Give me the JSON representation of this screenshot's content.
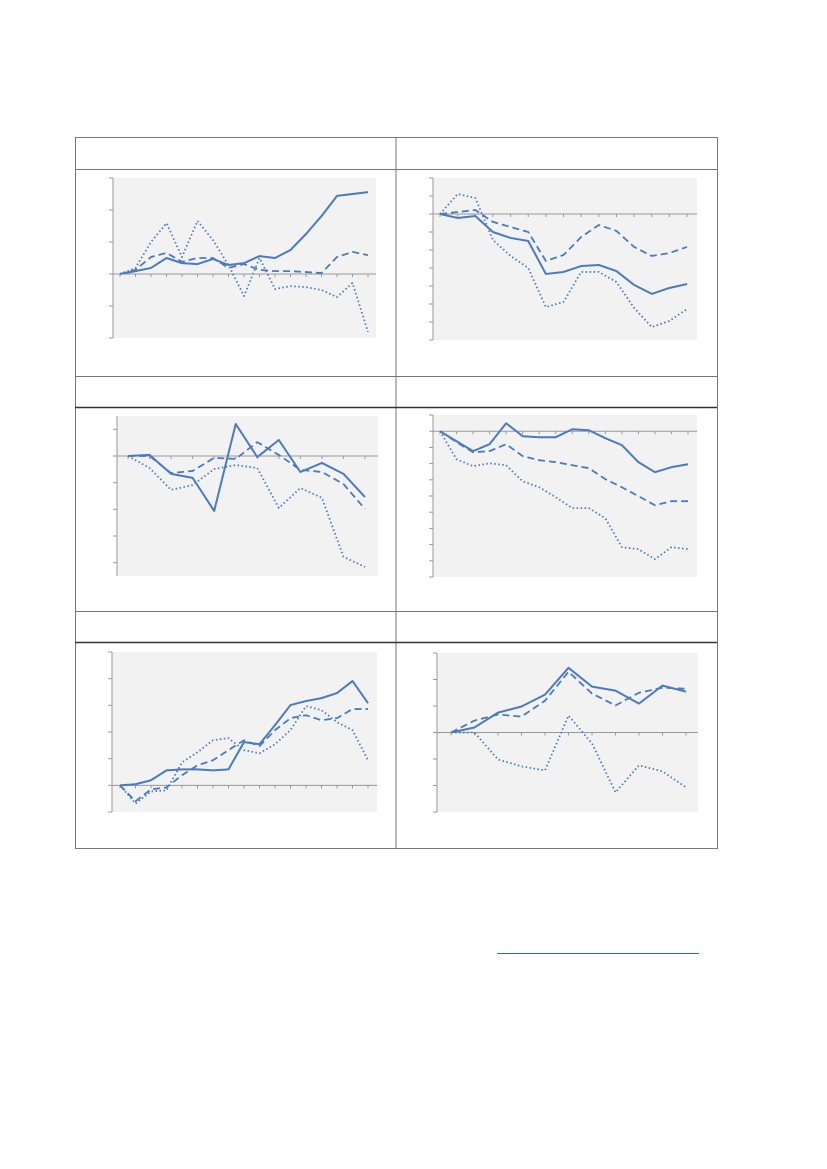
{
  "chart_data": [
    {
      "type": "line",
      "categories": [
        null,
        null,
        null,
        null,
        null,
        null,
        null,
        null,
        null,
        null,
        null,
        null,
        null,
        null,
        null,
        null,
        null
      ],
      "ylim": [
        -2,
        3
      ],
      "yticks": [
        -2,
        -1,
        0,
        1,
        2,
        3
      ],
      "series": [
        {
          "color": "#4a7bc0",
          "style": "solid",
          "values": [
            0,
            0.09,
            0.19,
            0.5,
            0.34,
            0.31,
            0.47,
            0.28,
            0.34,
            0.56,
            0.5,
            0.75,
            1.25,
            1.81,
            2.44,
            2.5,
            2.56
          ]
        },
        {
          "color": "#4a7bc0",
          "style": "dashed",
          "values": [
            0,
            0.13,
            0.53,
            0.66,
            0.38,
            0.5,
            0.5,
            0.19,
            0.31,
            0.13,
            0.09,
            0.09,
            0.06,
            0.03,
            0.53,
            0.69,
            0.59
          ]
        },
        {
          "color": "#4a7bc0",
          "style": "dotted",
          "values": [
            0,
            0.19,
            1,
            1.59,
            0.53,
            1.66,
            1.06,
            0.28,
            -0.69,
            0.5,
            -0.47,
            -0.38,
            -0.41,
            -0.5,
            -0.72,
            -0.28,
            -1.81
          ]
        }
      ]
    },
    {
      "type": "line",
      "categories": [
        null,
        null,
        null,
        null,
        null,
        null,
        null,
        null,
        null,
        null,
        null,
        null,
        null,
        null,
        null
      ],
      "ylim": [
        -7,
        2
      ],
      "yticks": [
        -7,
        -6,
        -5,
        -4,
        -3,
        -2,
        -1,
        0,
        1,
        2
      ],
      "series": [
        {
          "color": "#4a7bc0",
          "style": "solid",
          "values": [
            0,
            -0.22,
            -0.11,
            -1,
            -1.33,
            -1.5,
            -3.33,
            -3.22,
            -2.89,
            -2.83,
            -3.17,
            -3.94,
            -4.44,
            -4.11,
            -3.89
          ]
        },
        {
          "color": "#4a7bc0",
          "style": "dashed",
          "values": [
            0,
            0.11,
            0.22,
            -0.44,
            -0.72,
            -1,
            -2.61,
            -2.28,
            -1.28,
            -0.61,
            -0.94,
            -1.83,
            -2.33,
            -2.17,
            -1.83
          ]
        },
        {
          "color": "#4a7bc0",
          "style": "dotted",
          "values": [
            0,
            1.11,
            0.89,
            -1.44,
            -2.33,
            -3,
            -5.17,
            -4.89,
            -3.22,
            -3.22,
            -3.78,
            -5.22,
            -6.28,
            -5.94,
            -5.28
          ]
        }
      ]
    },
    {
      "type": "line",
      "categories": [
        null,
        null,
        null,
        null,
        null,
        null,
        null,
        null,
        null,
        null,
        null,
        null
      ],
      "ylim": [
        -4.5,
        1.5
      ],
      "yticks": [
        -4,
        -3,
        -2,
        -1,
        0,
        1
      ],
      "series": [
        {
          "color": "#4a7bc0",
          "style": "solid",
          "values": [
            0,
            0.04,
            -0.67,
            -0.82,
            -2.06,
            1.2,
            -0.04,
            0.6,
            -0.6,
            -0.26,
            -0.67,
            -1.54
          ]
        },
        {
          "color": "#4a7bc0",
          "style": "dashed",
          "values": [
            0,
            0,
            -0.64,
            -0.56,
            -0.07,
            -0.11,
            0.52,
            0.04,
            -0.52,
            -0.6,
            -1.05,
            -1.99
          ]
        },
        {
          "color": "#4a7bc0",
          "style": "dotted",
          "values": [
            0,
            -0.45,
            -1.27,
            -1.09,
            -0.49,
            -0.34,
            -0.45,
            -1.95,
            -1.2,
            -1.57,
            -3.78,
            -4.16
          ]
        }
      ]
    },
    {
      "type": "line",
      "categories": [
        null,
        null,
        null,
        null,
        null,
        null,
        null,
        null,
        null,
        null,
        null,
        null,
        null,
        null,
        null,
        null
      ],
      "ylim": [
        -9,
        1
      ],
      "yticks": [
        -9,
        -8,
        -7,
        -6,
        -5,
        -4,
        -3,
        -2,
        -1,
        0,
        1
      ],
      "series": [
        {
          "color": "#4a7bc0",
          "style": "solid",
          "values": [
            0,
            -0.62,
            -1.23,
            -0.8,
            0.49,
            -0.31,
            -0.37,
            -0.37,
            0.12,
            0.06,
            -0.43,
            -0.86,
            -1.91,
            -2.53,
            -2.22,
            -2.04
          ]
        },
        {
          "color": "#4a7bc0",
          "style": "dashed",
          "values": [
            0,
            -0.68,
            -1.3,
            -1.23,
            -0.8,
            -1.54,
            -1.79,
            -1.91,
            -2.1,
            -2.28,
            -2.96,
            -3.46,
            -4.01,
            -4.57,
            -4.32,
            -4.32
          ]
        },
        {
          "color": "#4a7bc0",
          "style": "dotted",
          "values": [
            0,
            -1.73,
            -2.16,
            -1.98,
            -2.1,
            -3.09,
            -3.46,
            -4.07,
            -4.75,
            -4.75,
            -5.37,
            -7.16,
            -7.28,
            -7.9,
            -7.16,
            -7.28
          ]
        }
      ]
    },
    {
      "type": "line",
      "categories": [
        null,
        null,
        null,
        null,
        null,
        null,
        null,
        null,
        null,
        null,
        null,
        null,
        null,
        null,
        null,
        null,
        null
      ],
      "ylim": [
        -1,
        5
      ],
      "yticks": [
        -1,
        0,
        1,
        2,
        3,
        4,
        5
      ],
      "series": [
        {
          "color": "#4a7bc0",
          "style": "solid",
          "values": [
            0,
            0.04,
            0.19,
            0.56,
            0.6,
            0.6,
            0.56,
            0.6,
            1.62,
            1.54,
            2.26,
            3.01,
            3.16,
            3.27,
            3.46,
            3.91,
            3.08
          ]
        },
        {
          "color": "#4a7bc0",
          "style": "dashed",
          "values": [
            0,
            -0.6,
            -0.15,
            -0.08,
            0.38,
            0.75,
            0.94,
            1.32,
            1.69,
            1.47,
            2.07,
            2.52,
            2.63,
            2.44,
            2.52,
            2.86,
            2.86
          ]
        },
        {
          "color": "#4a7bc0",
          "style": "dotted",
          "values": [
            0,
            -0.68,
            -0.23,
            -0.19,
            0.86,
            1.24,
            1.69,
            1.77,
            1.32,
            1.2,
            1.54,
            2.07,
            2.97,
            2.82,
            2.37,
            2.07,
            0.94
          ]
        }
      ]
    },
    {
      "type": "line",
      "categories": [
        null,
        null,
        null,
        null,
        null,
        null,
        null,
        null,
        null,
        null,
        null
      ],
      "ylim": [
        -3,
        3
      ],
      "yticks": [
        -3,
        -2,
        -1,
        0,
        1,
        2,
        3
      ],
      "series": [
        {
          "color": "#4a7bc0",
          "style": "solid",
          "values": [
            0,
            0.19,
            0.75,
            0.98,
            1.43,
            2.44,
            1.73,
            1.58,
            1.09,
            1.77,
            1.54
          ]
        },
        {
          "color": "#4a7bc0",
          "style": "dashed",
          "values": [
            0,
            0.45,
            0.68,
            0.6,
            1.2,
            2.29,
            1.47,
            1.02,
            1.5,
            1.69,
            1.65
          ]
        },
        {
          "color": "#4a7bc0",
          "style": "dotted",
          "values": [
            0,
            0,
            -1.02,
            -1.28,
            -1.43,
            0.64,
            -0.41,
            -2.26,
            -1.24,
            -1.47,
            -2.07
          ]
        }
      ]
    }
  ]
}
